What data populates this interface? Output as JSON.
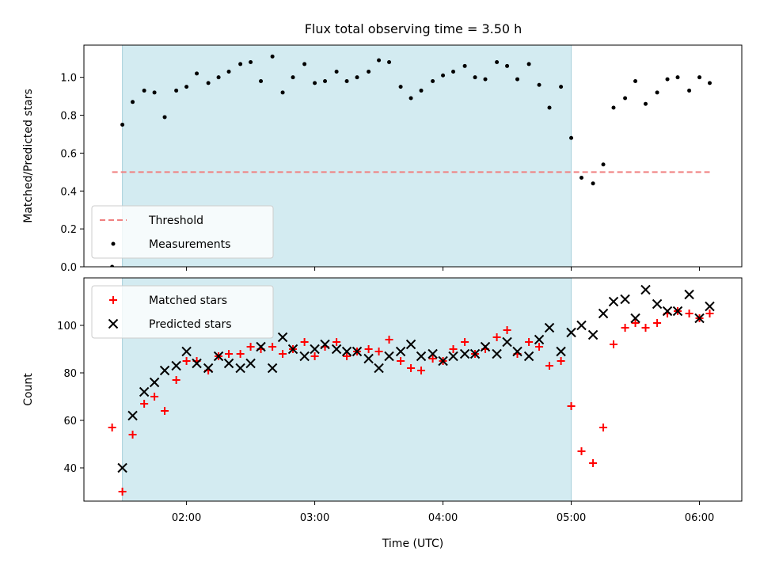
{
  "title": "Flux total observing time = 3.50 h",
  "colors": {
    "band": "#d3ebf1",
    "threshold": "#f08080",
    "measurement": "#000000",
    "matched": "#ff0000",
    "predicted": "#000000"
  },
  "chart_data": [
    {
      "type": "scatter",
      "panel": "top",
      "ylabel": "Matched/Predicted stars",
      "xlim": [
        1.2,
        6.33
      ],
      "ylim": [
        0,
        1.17
      ],
      "yticks": [
        0.0,
        0.2,
        0.4,
        0.6,
        0.8,
        1.0
      ],
      "ytick_labels": [
        "0.0",
        "0.2",
        "0.4",
        "0.6",
        "0.8",
        "1.0"
      ],
      "shaded_interval": [
        1.5,
        5.0
      ],
      "legend": {
        "position": "lower-left",
        "entries": [
          "Threshold",
          "Measurements"
        ]
      },
      "threshold": {
        "name": "Threshold",
        "y": 0.5,
        "x_from": 1.42,
        "x_to": 6.08
      },
      "series": [
        {
          "name": "Measurements",
          "marker": "dot",
          "x": [
            1.42,
            1.5,
            1.58,
            1.67,
            1.75,
            1.83,
            1.92,
            2.0,
            2.08,
            2.17,
            2.25,
            2.33,
            2.42,
            2.5,
            2.58,
            2.67,
            2.75,
            2.83,
            2.92,
            3.0,
            3.08,
            3.17,
            3.25,
            3.33,
            3.42,
            3.5,
            3.58,
            3.67,
            3.75,
            3.83,
            3.92,
            4.0,
            4.08,
            4.17,
            4.25,
            4.33,
            4.42,
            4.5,
            4.58,
            4.67,
            4.75,
            4.83,
            4.92,
            5.0,
            5.08,
            5.17,
            5.25,
            5.33,
            5.42,
            5.5,
            5.58,
            5.67,
            5.75,
            5.83,
            5.92,
            6.0,
            6.08
          ],
          "y": [
            0.0,
            0.75,
            0.87,
            0.93,
            0.92,
            0.79,
            0.93,
            0.95,
            1.02,
            0.97,
            1.0,
            1.03,
            1.07,
            1.08,
            0.98,
            1.11,
            0.92,
            1.0,
            1.07,
            0.97,
            0.98,
            1.03,
            0.98,
            1.0,
            1.03,
            1.09,
            1.08,
            0.95,
            0.89,
            0.93,
            0.98,
            1.01,
            1.03,
            1.06,
            1.0,
            0.99,
            1.08,
            1.06,
            0.99,
            1.07,
            0.96,
            0.84,
            0.95,
            0.68,
            0.47,
            0.44,
            0.54,
            0.84,
            0.89,
            0.98,
            0.86,
            0.92,
            0.99,
            1.0,
            0.93,
            1.0,
            0.97
          ]
        }
      ]
    },
    {
      "type": "scatter",
      "panel": "bottom",
      "xlabel": "Time (UTC)",
      "ylabel": "Count",
      "xlim": [
        1.2,
        6.33
      ],
      "ylim": [
        26,
        120
      ],
      "yticks": [
        40,
        60,
        80,
        100
      ],
      "ytick_labels": [
        "40",
        "60",
        "80",
        "100"
      ],
      "xticks": [
        2,
        3,
        4,
        5,
        6
      ],
      "xtick_labels": [
        "02:00",
        "03:00",
        "04:00",
        "05:00",
        "06:00"
      ],
      "shaded_interval": [
        1.5,
        5.0
      ],
      "legend": {
        "position": "upper-left",
        "entries": [
          "Matched stars",
          "Predicted stars"
        ]
      },
      "series": [
        {
          "name": "Matched stars",
          "marker": "plus",
          "x": [
            1.42,
            1.5,
            1.58,
            1.67,
            1.75,
            1.83,
            1.92,
            2.0,
            2.08,
            2.17,
            2.25,
            2.33,
            2.42,
            2.5,
            2.58,
            2.67,
            2.75,
            2.83,
            2.92,
            3.0,
            3.08,
            3.17,
            3.25,
            3.33,
            3.42,
            3.5,
            3.58,
            3.67,
            3.75,
            3.83,
            3.92,
            4.0,
            4.08,
            4.17,
            4.25,
            4.33,
            4.42,
            4.5,
            4.58,
            4.67,
            4.75,
            4.83,
            4.92,
            5.0,
            5.08,
            5.17,
            5.25,
            5.33,
            5.42,
            5.5,
            5.58,
            5.67,
            5.75,
            5.83,
            5.92,
            6.0,
            6.08
          ],
          "y": [
            57,
            30,
            54,
            67,
            70,
            64,
            77,
            85,
            85,
            81,
            87,
            88,
            88,
            91,
            90,
            91,
            88,
            90,
            93,
            87,
            91,
            93,
            87,
            89,
            90,
            89,
            94,
            85,
            82,
            81,
            86,
            85,
            90,
            93,
            88,
            90,
            95,
            98,
            88,
            93,
            91,
            83,
            85,
            66,
            47,
            42,
            57,
            92,
            99,
            101,
            99,
            101,
            105,
            106,
            105,
            103,
            105
          ]
        },
        {
          "name": "Predicted stars",
          "marker": "x",
          "x": [
            1.5,
            1.58,
            1.67,
            1.75,
            1.83,
            1.92,
            2.0,
            2.08,
            2.17,
            2.25,
            2.33,
            2.42,
            2.5,
            2.58,
            2.67,
            2.75,
            2.83,
            2.92,
            3.0,
            3.08,
            3.17,
            3.25,
            3.33,
            3.42,
            3.5,
            3.58,
            3.67,
            3.75,
            3.83,
            3.92,
            4.0,
            4.08,
            4.17,
            4.25,
            4.33,
            4.42,
            4.5,
            4.58,
            4.67,
            4.75,
            4.83,
            4.92,
            5.0,
            5.08,
            5.17,
            5.25,
            5.33,
            5.42,
            5.5,
            5.58,
            5.67,
            5.75,
            5.83,
            5.92,
            6.0,
            6.08
          ],
          "y": [
            40,
            62,
            72,
            76,
            81,
            83,
            89,
            84,
            82,
            87,
            84,
            82,
            84,
            91,
            82,
            95,
            90,
            87,
            90,
            92,
            90,
            89,
            89,
            86,
            82,
            87,
            89,
            92,
            87,
            88,
            85,
            87,
            88,
            88,
            91,
            88,
            93,
            89,
            87,
            94,
            99,
            89,
            97,
            100,
            96,
            105,
            110,
            111,
            103,
            115,
            109,
            106,
            106,
            113,
            103,
            108
          ]
        }
      ]
    }
  ]
}
